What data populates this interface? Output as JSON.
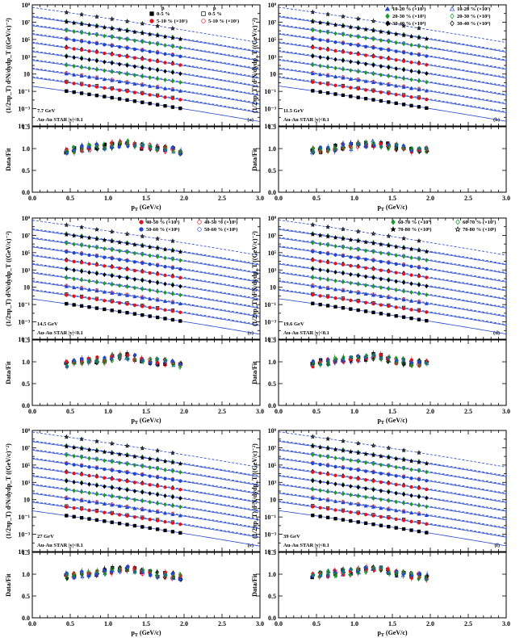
{
  "chart_data": {
    "type": "scatter",
    "figure_title": "",
    "xlabel": "p_T (GeV/c)",
    "ylabel_spectrum": "(1/2πp_T) d²N/dydp_T ((GeV/c)⁻²)",
    "ylabel_ratio": "Data/Fit",
    "xlim": [
      0.0,
      3.0
    ],
    "ylim_spectrum": [
      1e-05,
      1000000000
    ],
    "ylim_ratio": [
      0.0,
      1.5
    ],
    "x_ticks": [
      "0.0",
      "0.5",
      "1.0",
      "1.5",
      "2.0",
      "2.5",
      "3.0"
    ],
    "y_ticks_spectrum": [
      "10⁹",
      "10⁷",
      "10⁵",
      "10³",
      "10",
      "10⁻¹",
      "10⁻³",
      "10⁻⁵"
    ],
    "y_ticks_ratio": [
      "0.0",
      "0.5",
      "1.0",
      "1.5"
    ],
    "collision": "Au-Au  STAR  |y|<0.1",
    "legends": [
      {
        "label_pbar_header": "p̄",
        "label_p_header": "p",
        "entries": [
          {
            "marker": "filled-square",
            "color": "#000000",
            "label": "0-5 %"
          },
          {
            "marker": "open-square",
            "color": "#000000",
            "label": "0-5 %"
          },
          {
            "marker": "filled-circle",
            "color": "#e0141e",
            "label": "5-10 % (×10¹)"
          },
          {
            "marker": "open-circle",
            "color": "#e0141e",
            "label": "5-10 % (×10¹)"
          }
        ]
      },
      {
        "entries": [
          {
            "marker": "filled-triangle",
            "color": "#2146d0",
            "label": "10-20 % (×10²)"
          },
          {
            "marker": "open-triangle",
            "color": "#2146d0",
            "label": "10-20 % (×10²)"
          },
          {
            "marker": "filled-diamond",
            "color": "#1a9a2a",
            "label": "20-30 % (×10³)"
          },
          {
            "marker": "open-diamond",
            "color": "#1a9a2a",
            "label": "20-30 % (×10³)"
          },
          {
            "marker": "filled-diamond",
            "color": "#000000",
            "label": "30-40 % (×10⁴)"
          },
          {
            "marker": "open-diamond",
            "color": "#000000",
            "label": "30-40 % (×10⁴)"
          }
        ]
      },
      {
        "entries": [
          {
            "marker": "filled-circle",
            "color": "#e0141e",
            "label": "40-50 % (×10⁵)"
          },
          {
            "marker": "open-circle",
            "color": "#e0141e",
            "label": "40-50 % (×10⁵)"
          },
          {
            "marker": "filled-circle",
            "color": "#2146d0",
            "label": "50-60 % (×10⁶)"
          },
          {
            "marker": "open-circle",
            "color": "#2146d0",
            "label": "50-60 % (×10⁶)"
          }
        ]
      },
      {
        "entries": [
          {
            "marker": "filled-diamond",
            "color": "#1a9a2a",
            "label": "60-70 % (×10⁷)"
          },
          {
            "marker": "open-diamond",
            "color": "#1a9a2a",
            "label": "60-70 % (×10⁷)"
          },
          {
            "marker": "filled-star",
            "color": "#000000",
            "label": "70-80 % (×10⁸)"
          },
          {
            "marker": "open-star",
            "color": "#000000",
            "label": "70-80 % (×10⁸)"
          }
        ]
      }
    ],
    "panels": [
      {
        "id": "a",
        "energy": "7.7 GeV",
        "tag": "(a)"
      },
      {
        "id": "b",
        "energy": "11.5 GeV",
        "tag": "(b)"
      },
      {
        "id": "c",
        "energy": "14.5 GeV",
        "tag": "(c)"
      },
      {
        "id": "d",
        "energy": "19.6 GeV",
        "tag": "(d)"
      },
      {
        "id": "e",
        "energy": "27 GeV",
        "tag": "(e)"
      },
      {
        "id": "f",
        "energy": "39 GeV",
        "tag": "(f)"
      }
    ],
    "series": [
      {
        "name": "p̄ 0-5 %",
        "particle": "pbar",
        "scale": 1,
        "color": "#000000",
        "marker": "filled-square",
        "log10_at_pt0_4": -0.9
      },
      {
        "name": "p 0-5 %",
        "particle": "p",
        "scale": 1,
        "color": "#000000",
        "marker": "open-square",
        "log10_at_pt0_4": 0.2
      },
      {
        "name": "p̄ 5-10 %",
        "particle": "pbar",
        "scale": 10,
        "color": "#e0141e",
        "marker": "filled-circle",
        "log10_at_pt0_4": 0.1
      },
      {
        "name": "p 5-10 %",
        "particle": "p",
        "scale": 10,
        "color": "#e0141e",
        "marker": "open-circle",
        "log10_at_pt0_4": 1.2
      },
      {
        "name": "p̄ 10-20 %",
        "particle": "pbar",
        "scale": 100,
        "color": "#2146d0",
        "marker": "filled-triangle",
        "log10_at_pt0_4": 1.1
      },
      {
        "name": "p 10-20 %",
        "particle": "p",
        "scale": 100,
        "color": "#2146d0",
        "marker": "open-triangle",
        "log10_at_pt0_4": 2.2
      },
      {
        "name": "p̄ 20-30 %",
        "particle": "pbar",
        "scale": 1000,
        "color": "#1a9a2a",
        "marker": "filled-diamond",
        "log10_at_pt0_4": 2.1
      },
      {
        "name": "p 20-30 %",
        "particle": "p",
        "scale": 1000,
        "color": "#1a9a2a",
        "marker": "open-diamond",
        "log10_at_pt0_4": 3.2
      },
      {
        "name": "p̄ 30-40 %",
        "particle": "pbar",
        "scale": 10000,
        "color": "#000000",
        "marker": "filled-diamond",
        "log10_at_pt0_4": 3.1
      },
      {
        "name": "p 30-40 %",
        "particle": "p",
        "scale": 10000,
        "color": "#000000",
        "marker": "open-diamond",
        "log10_at_pt0_4": 4.2
      },
      {
        "name": "p̄ 40-50 %",
        "particle": "pbar",
        "scale": 100000,
        "color": "#e0141e",
        "marker": "filled-circle",
        "log10_at_pt0_4": 4.1
      },
      {
        "name": "p 40-50 %",
        "particle": "p",
        "scale": 100000,
        "color": "#e0141e",
        "marker": "open-circle",
        "log10_at_pt0_4": 5.2
      },
      {
        "name": "p̄ 50-60 %",
        "particle": "pbar",
        "scale": 1000000,
        "color": "#2146d0",
        "marker": "filled-circle",
        "log10_at_pt0_4": 5.1
      },
      {
        "name": "p 50-60 %",
        "particle": "p",
        "scale": 1000000,
        "color": "#2146d0",
        "marker": "open-circle",
        "log10_at_pt0_4": 6.2
      },
      {
        "name": "p̄ 60-70 %",
        "particle": "pbar",
        "scale": 10000000,
        "color": "#1a9a2a",
        "marker": "filled-diamond",
        "log10_at_pt0_4": 6.1
      },
      {
        "name": "p 60-70 %",
        "particle": "p",
        "scale": 10000000,
        "color": "#1a9a2a",
        "marker": "open-diamond",
        "log10_at_pt0_4": 7.2
      },
      {
        "name": "p̄ 70-80 %",
        "particle": "pbar",
        "scale": 100000000,
        "color": "#000000",
        "marker": "filled-star",
        "log10_at_pt0_4": 7.1
      },
      {
        "name": "p 70-80 %",
        "particle": "p",
        "scale": 100000000,
        "color": "#000000",
        "marker": "open-star",
        "log10_at_pt0_4": 8.2
      }
    ],
    "pt_points": [
      0.45,
      0.55,
      0.65,
      0.75,
      0.85,
      0.95,
      1.05,
      1.15,
      1.25,
      1.35,
      1.45,
      1.55,
      1.65,
      1.75,
      1.85,
      1.95
    ],
    "spectrum_slope_decades_per_GeV": -1.25,
    "fit_line_style": {
      "pbar": "solid",
      "p": "dashed",
      "color": "#2146d0"
    },
    "ratio_values": [
      0.95,
      0.98,
      1.0,
      1.02,
      1.04,
      1.05,
      1.08,
      1.1,
      1.12,
      1.1,
      1.06,
      1.03,
      1.0,
      0.98,
      0.96,
      0.94
    ]
  }
}
